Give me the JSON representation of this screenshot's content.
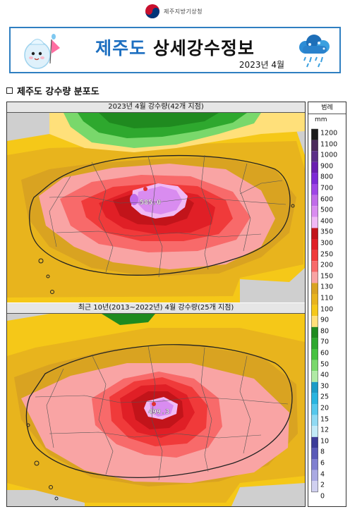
{
  "header": {
    "agency_name": "제주지방기상청",
    "title_highlight": "제주도",
    "title_rest": "상세강수정보",
    "date": "2023년 4월"
  },
  "section": {
    "title": "제주도 강수량 분포도"
  },
  "maps": [
    {
      "title": "2023년 4월 강수량(42개 지점)",
      "max_value_label": "585.0",
      "max_value": 585.0
    },
    {
      "title": "최근 10년(2013~2022년) 4월 강수량(25개 지점)",
      "max_value_label": "499.3",
      "max_value": 499.3
    }
  ],
  "legend": {
    "title": "범례",
    "unit": "mm",
    "levels": [
      "1200",
      "1100",
      "1000",
      "900",
      "800",
      "700",
      "600",
      "500",
      "400",
      "350",
      "300",
      "250",
      "200",
      "150",
      "130",
      "110",
      "100",
      "90",
      "80",
      "70",
      "60",
      "50",
      "40",
      "30",
      "25",
      "20",
      "15",
      "12",
      "10",
      "8",
      "6",
      "4",
      "2",
      "0"
    ],
    "colors": [
      "#1a1a1a",
      "#4a2a5a",
      "#5b2f88",
      "#6a1fb0",
      "#7d2ad6",
      "#9e45e6",
      "#c06be9",
      "#d98cf0",
      "#f0b9f5",
      "#c2141a",
      "#e01f26",
      "#f03a3a",
      "#f86a6a",
      "#f9a4a4",
      "#d9a321",
      "#e8b41d",
      "#f5c818",
      "#ffe07a",
      "#1f8a1f",
      "#2ea82e",
      "#46c240",
      "#79d86b",
      "#b0eaa5",
      "#1c9cc7",
      "#28b5e0",
      "#55c8ec",
      "#8fdaf3",
      "#c2eaf8",
      "#3c3c99",
      "#5a5ab8",
      "#8080d0",
      "#a9a9e2",
      "#d0d0f0",
      "#ffffff"
    ]
  },
  "colors": {
    "banner_border": "#2f7fc1",
    "title_accent": "#1d6fc0",
    "no_data_gray": "#cfcfcf",
    "max_marker": "#e03030"
  }
}
